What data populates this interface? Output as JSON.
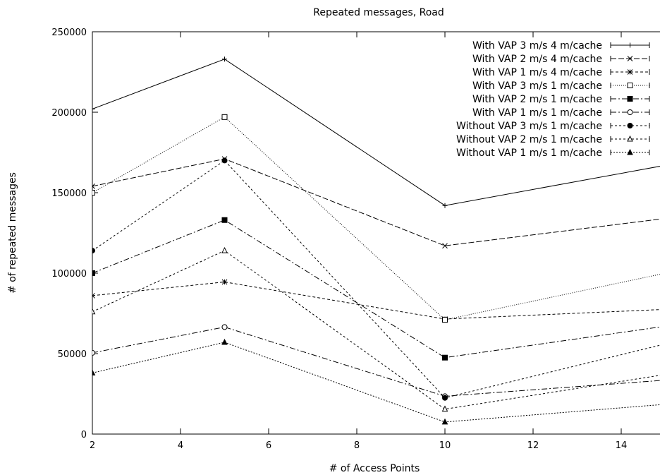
{
  "chart_data": {
    "type": "line",
    "title": "Repeated messages, Road",
    "xlabel": "# of Access Points",
    "ylabel": "# of repeated messages",
    "xlim": [
      2,
      15
    ],
    "ylim": [
      0,
      250000
    ],
    "xticks": [
      "2",
      "4",
      "6",
      "8",
      "10",
      "12",
      "14"
    ],
    "yticks": [
      "0",
      "50000",
      "100000",
      "150000",
      "200000",
      "250000"
    ],
    "grid": false,
    "legend_position": "top-right",
    "series": [
      {
        "name": "With VAP 3 m/s 4 m/cache",
        "marker": "plus",
        "dash": "none",
        "points": [
          [
            2,
            202000
          ],
          [
            5,
            233000
          ],
          [
            10,
            142000
          ],
          [
            15,
            167000
          ]
        ]
      },
      {
        "name": "With VAP 2 m/s 4 m/cache",
        "marker": "x",
        "dash": "8,3",
        "points": [
          [
            2,
            154000
          ],
          [
            5,
            171000
          ],
          [
            10,
            117000
          ],
          [
            15,
            134000
          ]
        ]
      },
      {
        "name": "With VAP 1 m/s 4 m/cache",
        "marker": "star",
        "dash": "4,3",
        "points": [
          [
            2,
            86000
          ],
          [
            5,
            94500
          ],
          [
            10,
            71500
          ],
          [
            15,
            77500
          ]
        ]
      },
      {
        "name": "With VAP 3 m/s 1 m/cache",
        "marker": "square-open",
        "dash": "1,2",
        "points": [
          [
            2,
            150000
          ],
          [
            5,
            197000
          ],
          [
            10,
            71000
          ],
          [
            15,
            100000
          ]
        ]
      },
      {
        "name": "With VAP 2 m/s 1 m/cache",
        "marker": "square-filled",
        "dash": "8,3,2,3",
        "points": [
          [
            2,
            100000
          ],
          [
            5,
            133000
          ],
          [
            10,
            47500
          ],
          [
            15,
            67000
          ]
        ]
      },
      {
        "name": "With VAP 1 m/s 1 m/cache",
        "marker": "circle-open",
        "dash": "8,3,2,3",
        "points": [
          [
            2,
            50500
          ],
          [
            5,
            66500
          ],
          [
            10,
            23500
          ],
          [
            15,
            33500
          ]
        ]
      },
      {
        "name": "Without VAP 3 m/s 1 m/cache",
        "marker": "circle-filled",
        "dash": "3,3",
        "points": [
          [
            2,
            114000
          ],
          [
            5,
            170000
          ],
          [
            10,
            22500
          ],
          [
            15,
            56000
          ]
        ]
      },
      {
        "name": "Without VAP 2 m/s 1 m/cache",
        "marker": "triangle-open",
        "dash": "3,3",
        "points": [
          [
            2,
            76000
          ],
          [
            5,
            114000
          ],
          [
            10,
            15500
          ],
          [
            15,
            37000
          ]
        ]
      },
      {
        "name": "Without VAP 1 m/s 1 m/cache",
        "marker": "triangle-filled",
        "dash": "2,2",
        "points": [
          [
            2,
            38000
          ],
          [
            5,
            57000
          ],
          [
            10,
            7500
          ],
          [
            15,
            18500
          ]
        ]
      }
    ]
  }
}
